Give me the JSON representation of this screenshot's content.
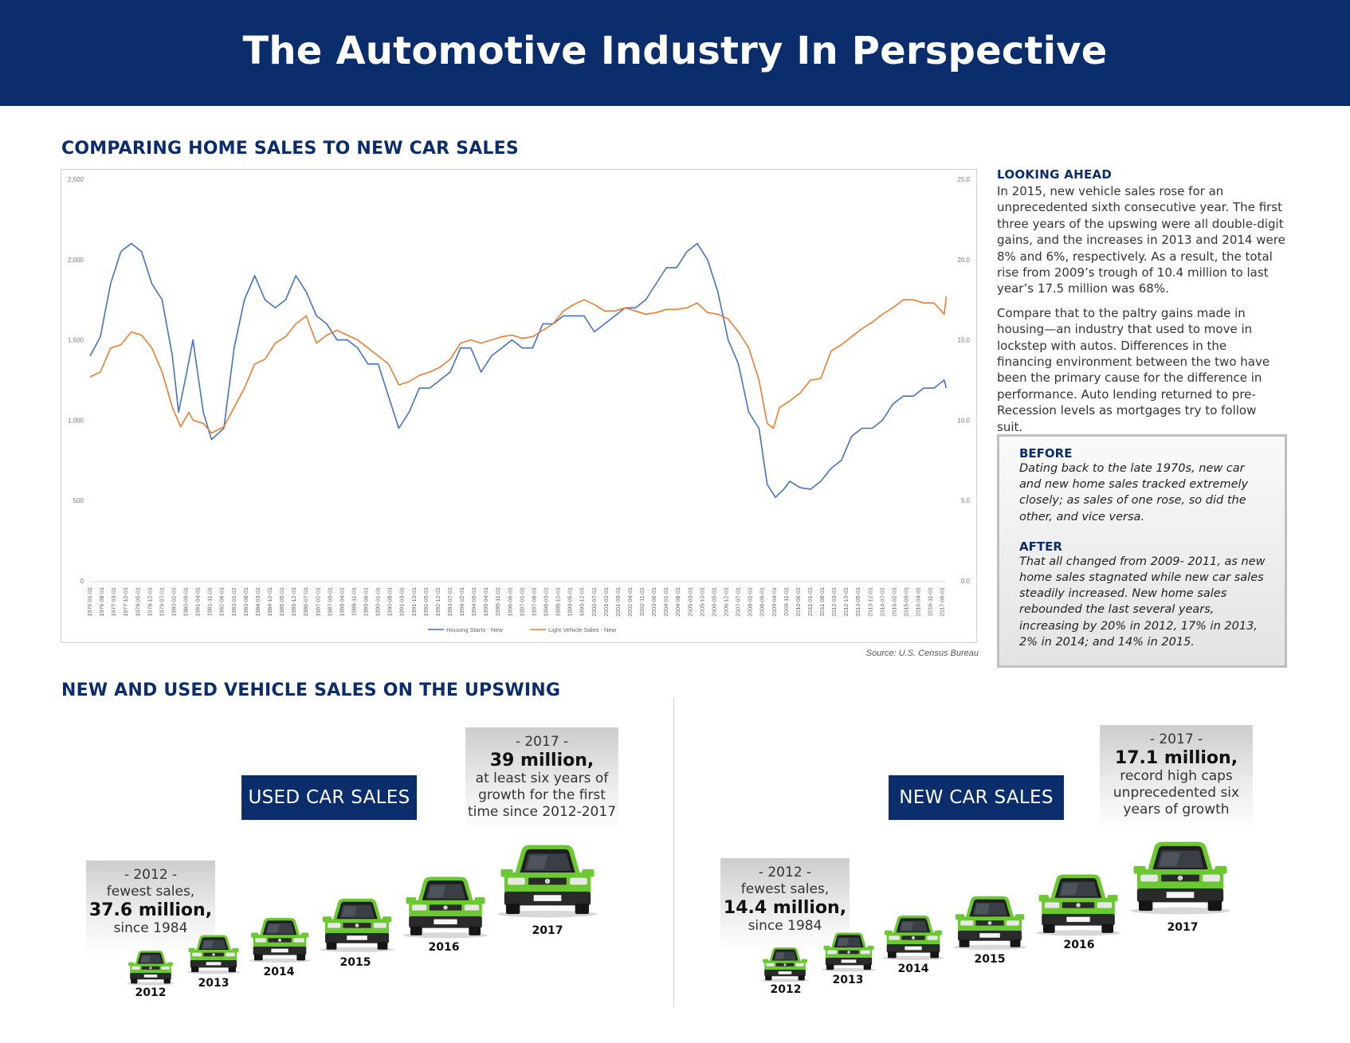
{
  "title": "The Automotive Industry In Perspective",
  "section1": {
    "title": "COMPARING HOME SALES TO NEW CAR SALES"
  },
  "chart_data": {
    "type": "line",
    "title": "",
    "x_start": "1976-01-01",
    "x_end": "2017-08-01",
    "x_tick_labels": [
      "1976-01-01",
      "1976-08-01",
      "1977-03-01",
      "1977-10-01",
      "1978-05-01",
      "1978-12-01",
      "1979-07-01",
      "1980-02-01",
      "1980-09-01",
      "1981-04-01",
      "1981-11-01",
      "1982-06-01",
      "1983-01-01",
      "1983-08-01",
      "1984-03-01",
      "1984-10-01",
      "1985-05-01",
      "1985-12-01",
      "1986-07-01",
      "1987-02-01",
      "1987-09-01",
      "1988-04-01",
      "1988-11-01",
      "1989-06-01",
      "1990-01-01",
      "1990-08-01",
      "1991-03-01",
      "1991-10-01",
      "1992-05-01",
      "1992-12-01",
      "1993-07-01",
      "1994-02-01",
      "1994-09-01",
      "1995-04-01",
      "1995-11-01",
      "1996-06-01",
      "1997-01-01",
      "1997-08-01",
      "1998-03-01",
      "1998-10-01",
      "1999-05-01",
      "1999-12-01",
      "2000-07-01",
      "2001-02-01",
      "2001-09-01",
      "2002-04-01",
      "2002-11-01",
      "2003-06-01",
      "2004-01-01",
      "2004-08-01",
      "2005-03-01",
      "2005-10-01",
      "2006-05-01",
      "2006-12-01",
      "2007-07-01",
      "2008-02-01",
      "2008-09-01",
      "2009-04-01",
      "2009-11-01",
      "2010-06-01",
      "2011-01-01",
      "2011-08-01",
      "2012-03-01",
      "2012-10-01",
      "2013-05-01",
      "2013-12-01",
      "2014-07-01",
      "2015-02-01",
      "2015-09-01",
      "2016-04-01",
      "2016-11-01",
      "2017-06-01"
    ],
    "y_left": {
      "ticks": [
        "0",
        "500",
        "1,000",
        "1,500",
        "2,000",
        "2,500"
      ],
      "range": [
        0,
        2500
      ]
    },
    "y_right": {
      "ticks": [
        "0.0",
        "5.0",
        "10.0",
        "15.0",
        "20.0",
        "25.0"
      ],
      "range": [
        0,
        25
      ]
    },
    "legend_position": "bottom",
    "grid": false,
    "series": [
      {
        "name": "Housing Starts - New",
        "axis": "left",
        "color": "#4472c4",
        "points": [
          [
            1976.0,
            1400
          ],
          [
            1976.5,
            1520
          ],
          [
            1977.0,
            1850
          ],
          [
            1977.5,
            2050
          ],
          [
            1978.0,
            2100
          ],
          [
            1978.5,
            2050
          ],
          [
            1979.0,
            1850
          ],
          [
            1979.5,
            1750
          ],
          [
            1980.0,
            1400
          ],
          [
            1980.3,
            1050
          ],
          [
            1980.7,
            1300
          ],
          [
            1981.0,
            1500
          ],
          [
            1981.5,
            1050
          ],
          [
            1981.9,
            880
          ],
          [
            1982.5,
            950
          ],
          [
            1983.0,
            1450
          ],
          [
            1983.5,
            1750
          ],
          [
            1984.0,
            1900
          ],
          [
            1984.5,
            1750
          ],
          [
            1985.0,
            1700
          ],
          [
            1985.5,
            1750
          ],
          [
            1986.0,
            1900
          ],
          [
            1986.5,
            1800
          ],
          [
            1987.0,
            1650
          ],
          [
            1987.5,
            1600
          ],
          [
            1988.0,
            1500
          ],
          [
            1988.5,
            1500
          ],
          [
            1989.0,
            1450
          ],
          [
            1989.5,
            1350
          ],
          [
            1990.0,
            1350
          ],
          [
            1990.5,
            1150
          ],
          [
            1991.0,
            950
          ],
          [
            1991.5,
            1050
          ],
          [
            1992.0,
            1200
          ],
          [
            1992.5,
            1200
          ],
          [
            1993.0,
            1250
          ],
          [
            1993.5,
            1300
          ],
          [
            1994.0,
            1450
          ],
          [
            1994.5,
            1450
          ],
          [
            1995.0,
            1300
          ],
          [
            1995.5,
            1400
          ],
          [
            1996.0,
            1450
          ],
          [
            1996.5,
            1500
          ],
          [
            1997.0,
            1450
          ],
          [
            1997.5,
            1450
          ],
          [
            1998.0,
            1600
          ],
          [
            1998.5,
            1600
          ],
          [
            1999.0,
            1650
          ],
          [
            1999.5,
            1650
          ],
          [
            2000.0,
            1650
          ],
          [
            2000.5,
            1550
          ],
          [
            2001.0,
            1600
          ],
          [
            2001.5,
            1650
          ],
          [
            2002.0,
            1700
          ],
          [
            2002.5,
            1700
          ],
          [
            2003.0,
            1750
          ],
          [
            2003.5,
            1850
          ],
          [
            2004.0,
            1950
          ],
          [
            2004.5,
            1950
          ],
          [
            2005.0,
            2050
          ],
          [
            2005.5,
            2100
          ],
          [
            2006.0,
            2000
          ],
          [
            2006.5,
            1800
          ],
          [
            2007.0,
            1500
          ],
          [
            2007.5,
            1350
          ],
          [
            2008.0,
            1050
          ],
          [
            2008.5,
            950
          ],
          [
            2008.9,
            600
          ],
          [
            2009.3,
            520
          ],
          [
            2009.7,
            570
          ],
          [
            2010.0,
            620
          ],
          [
            2010.5,
            580
          ],
          [
            2011.0,
            570
          ],
          [
            2011.5,
            620
          ],
          [
            2012.0,
            700
          ],
          [
            2012.5,
            750
          ],
          [
            2013.0,
            900
          ],
          [
            2013.5,
            950
          ],
          [
            2014.0,
            950
          ],
          [
            2014.5,
            1000
          ],
          [
            2015.0,
            1100
          ],
          [
            2015.5,
            1150
          ],
          [
            2016.0,
            1150
          ],
          [
            2016.5,
            1200
          ],
          [
            2017.0,
            1200
          ],
          [
            2017.5,
            1250
          ],
          [
            2017.6,
            1200
          ]
        ]
      },
      {
        "name": "Light Vehicle Sales - New",
        "axis": "right",
        "color": "#ed7d31",
        "points": [
          [
            1976.0,
            12.7
          ],
          [
            1976.5,
            13.0
          ],
          [
            1977.0,
            14.5
          ],
          [
            1977.5,
            14.7
          ],
          [
            1978.0,
            15.5
          ],
          [
            1978.5,
            15.3
          ],
          [
            1979.0,
            14.5
          ],
          [
            1979.5,
            13.0
          ],
          [
            1980.0,
            10.8
          ],
          [
            1980.4,
            9.6
          ],
          [
            1980.8,
            10.5
          ],
          [
            1981.0,
            10.0
          ],
          [
            1981.5,
            9.8
          ],
          [
            1981.9,
            9.2
          ],
          [
            1982.5,
            9.6
          ],
          [
            1983.0,
            10.8
          ],
          [
            1983.5,
            12.0
          ],
          [
            1984.0,
            13.5
          ],
          [
            1984.5,
            13.8
          ],
          [
            1985.0,
            14.8
          ],
          [
            1985.5,
            15.2
          ],
          [
            1986.0,
            16.0
          ],
          [
            1986.5,
            16.5
          ],
          [
            1987.0,
            14.8
          ],
          [
            1987.5,
            15.3
          ],
          [
            1988.0,
            15.6
          ],
          [
            1988.5,
            15.3
          ],
          [
            1989.0,
            15.0
          ],
          [
            1989.5,
            14.5
          ],
          [
            1990.0,
            14.0
          ],
          [
            1990.5,
            13.5
          ],
          [
            1991.0,
            12.2
          ],
          [
            1991.5,
            12.4
          ],
          [
            1992.0,
            12.8
          ],
          [
            1992.5,
            13.0
          ],
          [
            1993.0,
            13.3
          ],
          [
            1993.5,
            13.8
          ],
          [
            1994.0,
            14.8
          ],
          [
            1994.5,
            15.0
          ],
          [
            1995.0,
            14.8
          ],
          [
            1995.5,
            15.0
          ],
          [
            1996.0,
            15.2
          ],
          [
            1996.5,
            15.3
          ],
          [
            1997.0,
            15.1
          ],
          [
            1997.5,
            15.2
          ],
          [
            1998.0,
            15.6
          ],
          [
            1998.5,
            16.0
          ],
          [
            1999.0,
            16.8
          ],
          [
            1999.5,
            17.2
          ],
          [
            2000.0,
            17.5
          ],
          [
            2000.5,
            17.2
          ],
          [
            2001.0,
            16.8
          ],
          [
            2001.5,
            16.8
          ],
          [
            2002.0,
            17.0
          ],
          [
            2002.5,
            16.8
          ],
          [
            2003.0,
            16.6
          ],
          [
            2003.5,
            16.7
          ],
          [
            2004.0,
            16.9
          ],
          [
            2004.5,
            16.9
          ],
          [
            2005.0,
            17.0
          ],
          [
            2005.5,
            17.3
          ],
          [
            2006.0,
            16.7
          ],
          [
            2006.5,
            16.6
          ],
          [
            2007.0,
            16.3
          ],
          [
            2007.5,
            15.5
          ],
          [
            2008.0,
            14.5
          ],
          [
            2008.5,
            12.5
          ],
          [
            2008.9,
            9.8
          ],
          [
            2009.2,
            9.5
          ],
          [
            2009.5,
            10.8
          ],
          [
            2010.0,
            11.2
          ],
          [
            2010.5,
            11.7
          ],
          [
            2011.0,
            12.5
          ],
          [
            2011.5,
            12.6
          ],
          [
            2012.0,
            14.3
          ],
          [
            2012.5,
            14.7
          ],
          [
            2013.0,
            15.2
          ],
          [
            2013.5,
            15.7
          ],
          [
            2014.0,
            16.1
          ],
          [
            2014.5,
            16.6
          ],
          [
            2015.0,
            17.0
          ],
          [
            2015.5,
            17.5
          ],
          [
            2016.0,
            17.5
          ],
          [
            2016.5,
            17.3
          ],
          [
            2017.0,
            17.3
          ],
          [
            2017.5,
            16.6
          ],
          [
            2017.6,
            17.7
          ]
        ]
      }
    ]
  },
  "chart_source": "Source: U.S. Census Bureau",
  "looking_ahead": {
    "title": "LOOKING AHEAD",
    "p1": "In 2015, new vehicle sales rose for an unprecedented sixth consecutive year. The first three years of the upswing were all double-digit gains, and the increases in 2013 and 2014 were 8% and 6%, respectively. As a result, the total rise from 2009’s trough of 10.4 million to last year’s 17.5 million was 68%.",
    "p2": "Compare that to the paltry gains made in housing—an industry that used to move in lockstep with autos. Differences in the financing environment between the two have been the primary cause for the difference in performance. Auto lending returned to pre-Recession levels as mortgages try to follow suit."
  },
  "comparison": {
    "before_title": "BEFORE",
    "before_text": "Dating back to the late 1970s, new car and new home sales tracked extremely closely; as sales of one rose, so did the other, and vice versa.",
    "after_title": "AFTER",
    "after_text": "That all changed from 2009- 2011, as new home sales stagnated while new car sales steadily increased. New home sales rebounded the last several years, increasing by 20% in 2012, 17% in 2013, 2% in 2014; and 14% in 2015."
  },
  "section2": {
    "title": "NEW AND USED VEHICLE SALES ON THE UPSWING"
  },
  "used": {
    "label": "USED CAR SALES",
    "c2012": {
      "top": "- 2012 -",
      "line2": "fewest sales,",
      "big": "37.6 million",
      "tail": ",",
      "line4": "since 1984"
    },
    "c2017": {
      "top": "- 2017 -",
      "big": "39 million",
      "tail": ",",
      "line3": "at least six years of",
      "line4": "growth for the first",
      "line5": "time since 2012-2017"
    },
    "years": [
      "2012",
      "2013",
      "2014",
      "2015",
      "2016",
      "2017"
    ]
  },
  "new": {
    "label": "NEW CAR SALES",
    "c2012": {
      "top": "- 2012 -",
      "line2": "fewest sales,",
      "big": "14.4 million",
      "tail": ",",
      "line4": "since 1984"
    },
    "c2017": {
      "top": "- 2017 -",
      "big": "17.1 million",
      "tail": ",",
      "line3": "record high caps",
      "line4": "unprecedented six",
      "line5": "years of growth"
    },
    "years": [
      "2012",
      "2013",
      "2014",
      "2015",
      "2016",
      "2017"
    ]
  },
  "colors": {
    "navy": "#0b2d6b",
    "car_green": "#6cc831",
    "housing": "#4472c4",
    "vehicles": "#ed7d31"
  },
  "icons": {
    "car": "car-icon"
  }
}
